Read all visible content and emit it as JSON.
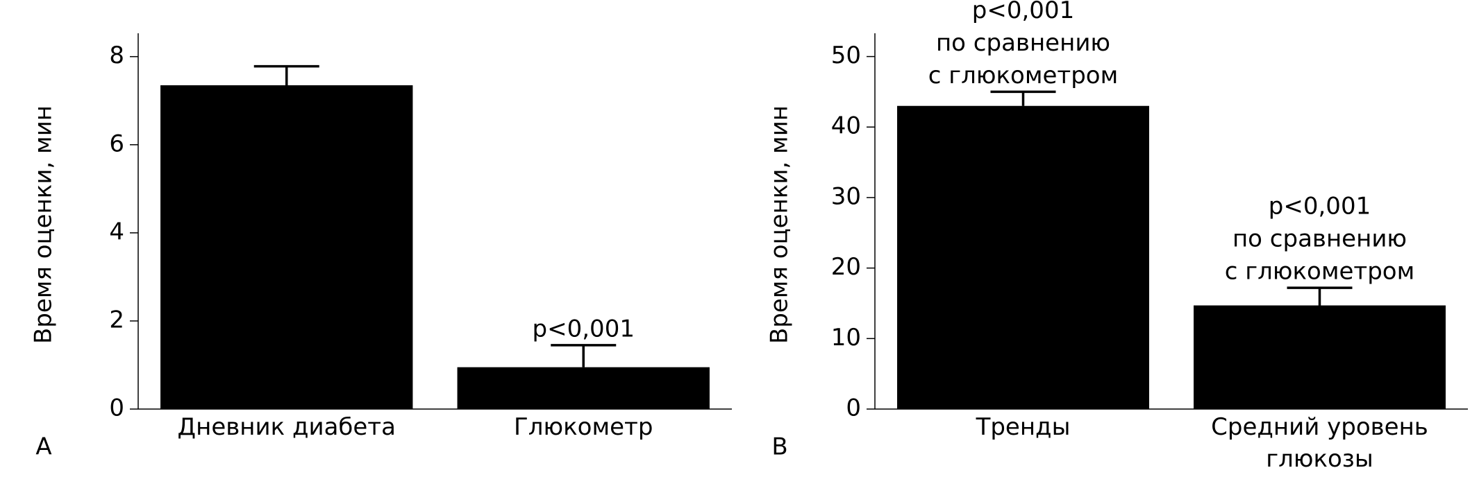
{
  "chart_data": [
    {
      "type": "bar",
      "panel": "A",
      "ylabel": "Время оценки, мин",
      "categories": [
        "Дневник диабета",
        "Глюкометр"
      ],
      "values": [
        7.35,
        0.95
      ],
      "errors": [
        0.43,
        0.5
      ],
      "color": "#000000",
      "annotations": [
        null,
        [
          "p<0,001"
        ]
      ],
      "ylim": [
        0,
        8.53
      ],
      "yticks": [
        0,
        2,
        4,
        6,
        8
      ]
    },
    {
      "type": "bar",
      "panel": "B",
      "ylabel": "Время оценки, мин",
      "categories": [
        "Тренды",
        "Средний уровень глюкозы"
      ],
      "values": [
        43,
        14.7
      ],
      "errors": [
        2,
        2.5
      ],
      "color": "#000000",
      "annotations": [
        [
          "p<0,001",
          "по сравнению",
          "с глюкометром"
        ],
        [
          "p<0,001",
          "по сравнению",
          "с глюкометром"
        ]
      ],
      "ylim": [
        0,
        53.3
      ],
      "yticks": [
        0,
        10,
        20,
        30,
        40,
        50
      ]
    }
  ]
}
